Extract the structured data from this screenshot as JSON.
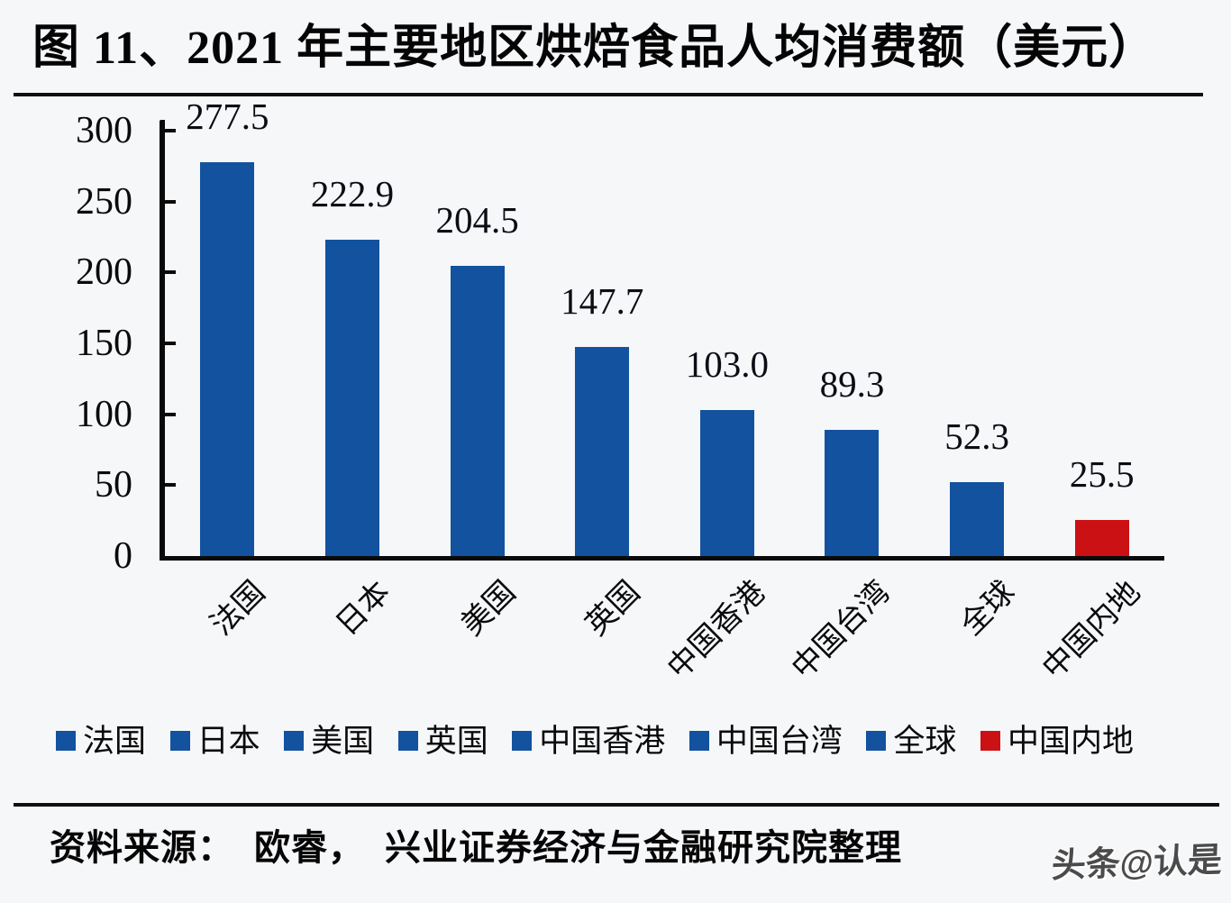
{
  "title": "图 11、2021 年主要地区烘焙食品人均消费额（美元）",
  "source": "资料来源：  欧睿，  兴业证券经济与金融研究院整理",
  "watermark": "头条@认是",
  "colors": {
    "bar_blue": "#12529F",
    "bar_red": "#CB1114",
    "axis": "#0A0A0A",
    "background": "#F6F7F9"
  },
  "chart_data": {
    "type": "bar",
    "title": "2021 年主要地区烘焙食品人均消费额（美元）",
    "categories": [
      "法国",
      "日本",
      "美国",
      "英国",
      "中国香港",
      "中国台湾",
      "全球",
      "中国内地"
    ],
    "values": [
      277.5,
      222.9,
      204.5,
      147.7,
      103.0,
      89.3,
      52.3,
      25.5
    ],
    "value_labels": [
      "277.5",
      "222.9",
      "204.5",
      "147.7",
      "103.0",
      "89.3",
      "52.3",
      "25.5"
    ],
    "bar_colors": [
      "#12529F",
      "#12529F",
      "#12529F",
      "#12529F",
      "#12529F",
      "#12529F",
      "#12529F",
      "#CB1114"
    ],
    "xlabel": "",
    "ylabel": "",
    "ylim": [
      0,
      300
    ],
    "yticks": [
      0,
      50,
      100,
      150,
      200,
      250,
      300
    ],
    "grid": false,
    "legend_position": "bottom",
    "legend": [
      {
        "label": "法国",
        "color": "#12529F"
      },
      {
        "label": "日本",
        "color": "#12529F"
      },
      {
        "label": "美国",
        "color": "#12529F"
      },
      {
        "label": "英国",
        "color": "#12529F"
      },
      {
        "label": "中国香港",
        "color": "#12529F"
      },
      {
        "label": "中国台湾",
        "color": "#12529F"
      },
      {
        "label": "全球",
        "color": "#12529F"
      },
      {
        "label": "中国内地",
        "color": "#CB1114"
      }
    ]
  }
}
